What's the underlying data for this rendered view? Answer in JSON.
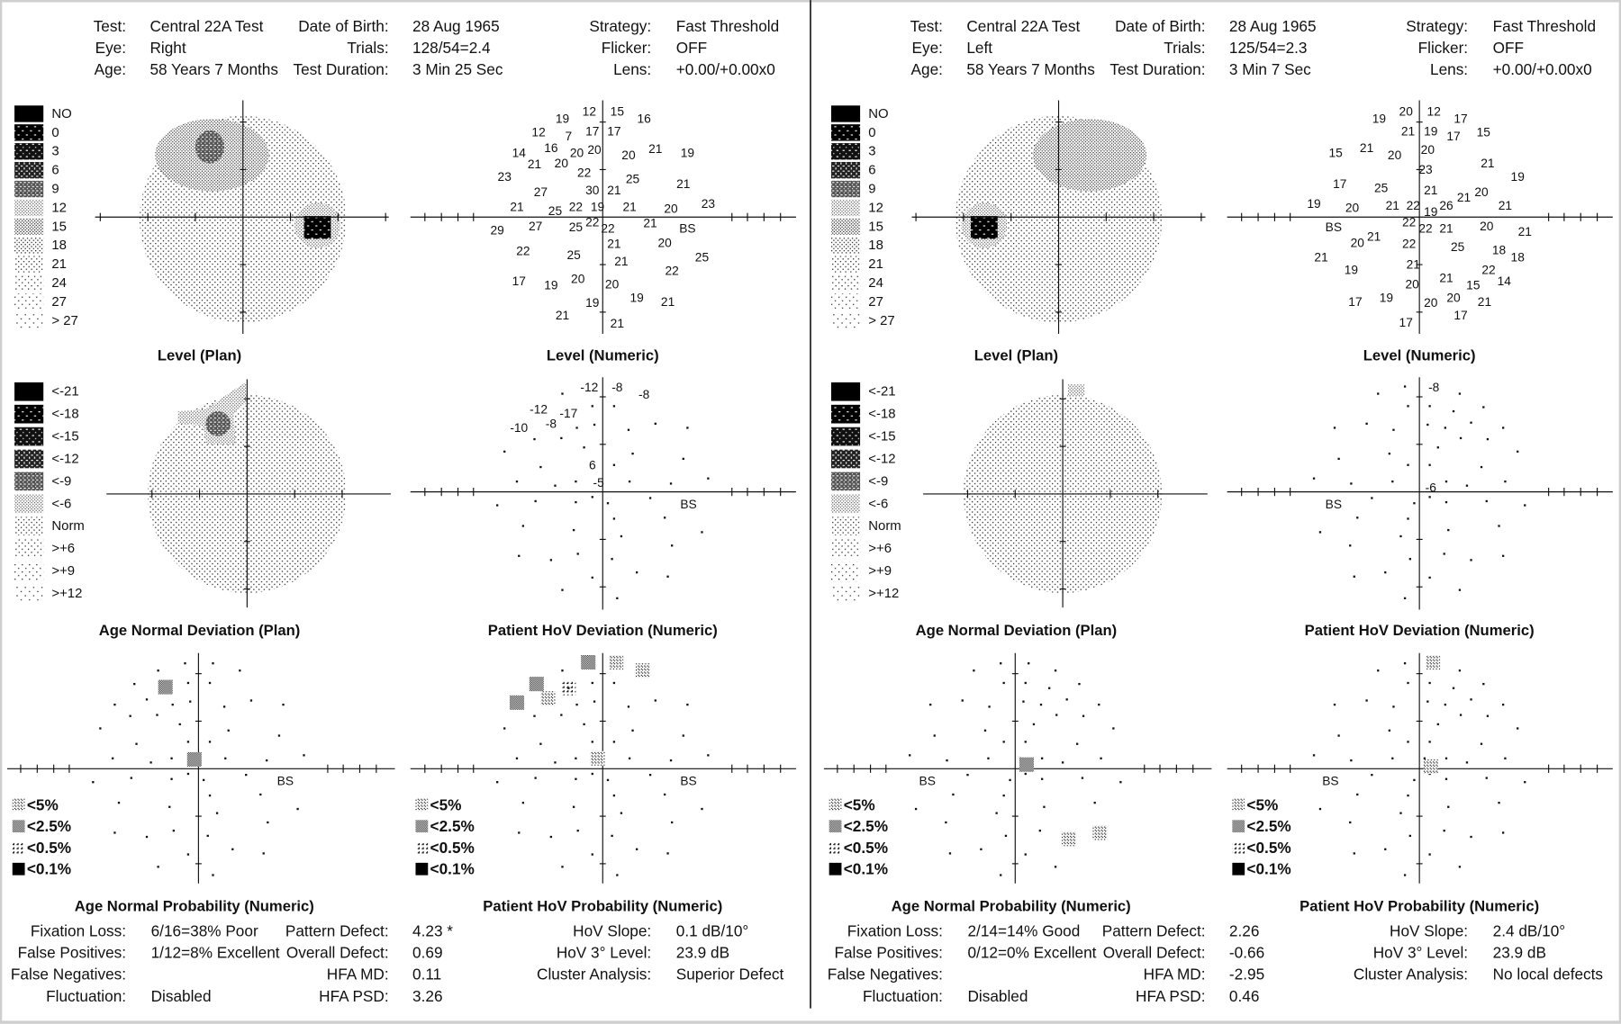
{
  "panels": [
    {
      "header": [
        [
          {
            "label": "Test:",
            "value": "Central 22A Test"
          },
          {
            "label": "Eye:",
            "value": "Right"
          },
          {
            "label": "Age:",
            "value": "58 Years 7 Months"
          }
        ],
        [
          {
            "label": "Date of Birth:",
            "value": "28 Aug 1965"
          },
          {
            "label": "Trials:",
            "value": "128/54=2.4"
          },
          {
            "label": "Test Duration:",
            "value": "3 Min 25 Sec"
          }
        ],
        [
          {
            "label": "Strategy:",
            "value": "Fast Threshold"
          },
          {
            "label": "Flicker:",
            "value": "OFF"
          },
          {
            "label": "Lens:",
            "value": "+0.00/+0.00x0"
          }
        ]
      ],
      "level_legend": [
        "NO",
        "0",
        "3",
        "6",
        "9",
        "12",
        "15",
        "18",
        "21",
        "24",
        "27",
        "> 27"
      ],
      "deviation_legend": [
        "<-21",
        "<-18",
        "<-15",
        "<-12",
        "<-9",
        "<-6",
        "Norm",
        ">+6",
        ">+9",
        ">+12"
      ],
      "probability_legend": [
        "<5%",
        "<2.5%",
        "<0.5%",
        "<0.1%"
      ],
      "titles": [
        "Level (Plan)",
        "Level (Numeric)",
        "Age Normal Deviation (Plan)",
        "Patient HoV Deviation (Numeric)",
        "Age Normal Probability (Numeric)",
        "Patient HoV Probability (Numeric)"
      ],
      "blind_spot": "BS",
      "level_numeric": [
        19,
        12,
        15,
        16,
        12,
        7,
        17,
        17,
        14,
        16,
        20,
        20,
        20,
        21,
        19,
        21,
        20,
        22,
        23,
        25,
        21,
        27,
        30,
        21,
        21,
        25,
        22,
        19,
        21,
        20,
        23,
        29,
        27,
        25,
        22,
        22,
        21,
        21,
        20,
        22,
        25,
        21,
        25,
        22,
        17,
        19,
        20,
        20,
        19,
        19,
        21,
        21,
        21
      ],
      "hov_deviation_numeric": [
        -12,
        -8,
        -8,
        -12,
        -17,
        -10,
        -8,
        6,
        -5
      ],
      "stats": [
        [
          {
            "label": "Fixation Loss:",
            "value": "6/16=38% Poor"
          },
          {
            "label": "False Positives:",
            "value": "1/12=8% Excellent"
          },
          {
            "label": "False Negatives:"
          },
          {
            "label": "Fluctuation:",
            "value": "Disabled"
          }
        ],
        [
          {
            "label": "Pattern Defect:",
            "value": "4.23 *"
          },
          {
            "label": "Overall Defect:",
            "value": "0.69"
          },
          {
            "label": "HFA MD:",
            "value": "0.11"
          },
          {
            "label": "HFA PSD:",
            "value": "3.26"
          }
        ],
        [
          {
            "label": "HoV Slope:",
            "value": "0.1 dB/10°"
          },
          {
            "label": "HoV 3° Level:",
            "value": "23.9 dB"
          },
          {
            "label": "Cluster Analysis:",
            "value": "Superior Defect"
          }
        ]
      ]
    },
    {
      "header": [
        [
          {
            "label": "Test:",
            "value": "Central 22A Test"
          },
          {
            "label": "Eye:",
            "value": "Left"
          },
          {
            "label": "Age:",
            "value": "58 Years 7 Months"
          }
        ],
        [
          {
            "label": "Date of Birth:",
            "value": "28 Aug 1965"
          },
          {
            "label": "Trials:",
            "value": "125/54=2.3"
          },
          {
            "label": "Test Duration:",
            "value": "3 Min 7 Sec"
          }
        ],
        [
          {
            "label": "Strategy:",
            "value": "Fast Threshold"
          },
          {
            "label": "Flicker:",
            "value": "OFF"
          },
          {
            "label": "Lens:",
            "value": "+0.00/+0.00x0"
          }
        ]
      ],
      "level_legend": [
        "NO",
        "0",
        "3",
        "6",
        "9",
        "12",
        "15",
        "18",
        "21",
        "24",
        "27",
        "> 27"
      ],
      "deviation_legend": [
        "<-21",
        "<-18",
        "<-15",
        "<-12",
        "<-9",
        "<-6",
        "Norm",
        ">+6",
        ">+9",
        ">+12"
      ],
      "probability_legend": [
        "<5%",
        "<2.5%",
        "<0.5%",
        "<0.1%"
      ],
      "titles": [
        "Level (Plan)",
        "Level (Numeric)",
        "Age Normal Deviation (Plan)",
        "Patient HoV Deviation (Numeric)",
        "Age Normal Probability (Numeric)",
        "Patient HoV Probability (Numeric)"
      ],
      "blind_spot": "BS",
      "level_numeric": [
        19,
        20,
        12,
        17,
        21,
        19,
        17,
        15,
        15,
        21,
        20,
        20,
        23,
        21,
        19,
        17,
        25,
        21,
        21,
        20,
        19,
        20,
        21,
        22,
        26,
        21,
        19,
        22,
        22,
        21,
        20,
        21,
        20,
        21,
        22,
        25,
        18,
        18,
        21,
        21,
        19,
        22,
        21,
        15,
        14,
        20,
        17,
        19,
        20,
        20,
        21,
        17,
        17
      ],
      "hov_deviation_numeric": [
        -8,
        -6
      ],
      "stats": [
        [
          {
            "label": "Fixation Loss:",
            "value": "2/14=14% Good"
          },
          {
            "label": "False Positives:",
            "value": "0/12=0% Excellent"
          },
          {
            "label": "False Negatives:"
          },
          {
            "label": "Fluctuation:",
            "value": "Disabled"
          }
        ],
        [
          {
            "label": "Pattern Defect:",
            "value": "2.26"
          },
          {
            "label": "Overall Defect:",
            "value": "-0.66"
          },
          {
            "label": "HFA MD:",
            "value": "-2.95"
          },
          {
            "label": "HFA PSD:",
            "value": "0.46"
          }
        ],
        [
          {
            "label": "HoV Slope:",
            "value": "2.4 dB/10°"
          },
          {
            "label": "HoV 3° Level:",
            "value": "23.9 dB"
          },
          {
            "label": "Cluster Analysis:",
            "value": "No local defects"
          }
        ]
      ]
    }
  ]
}
